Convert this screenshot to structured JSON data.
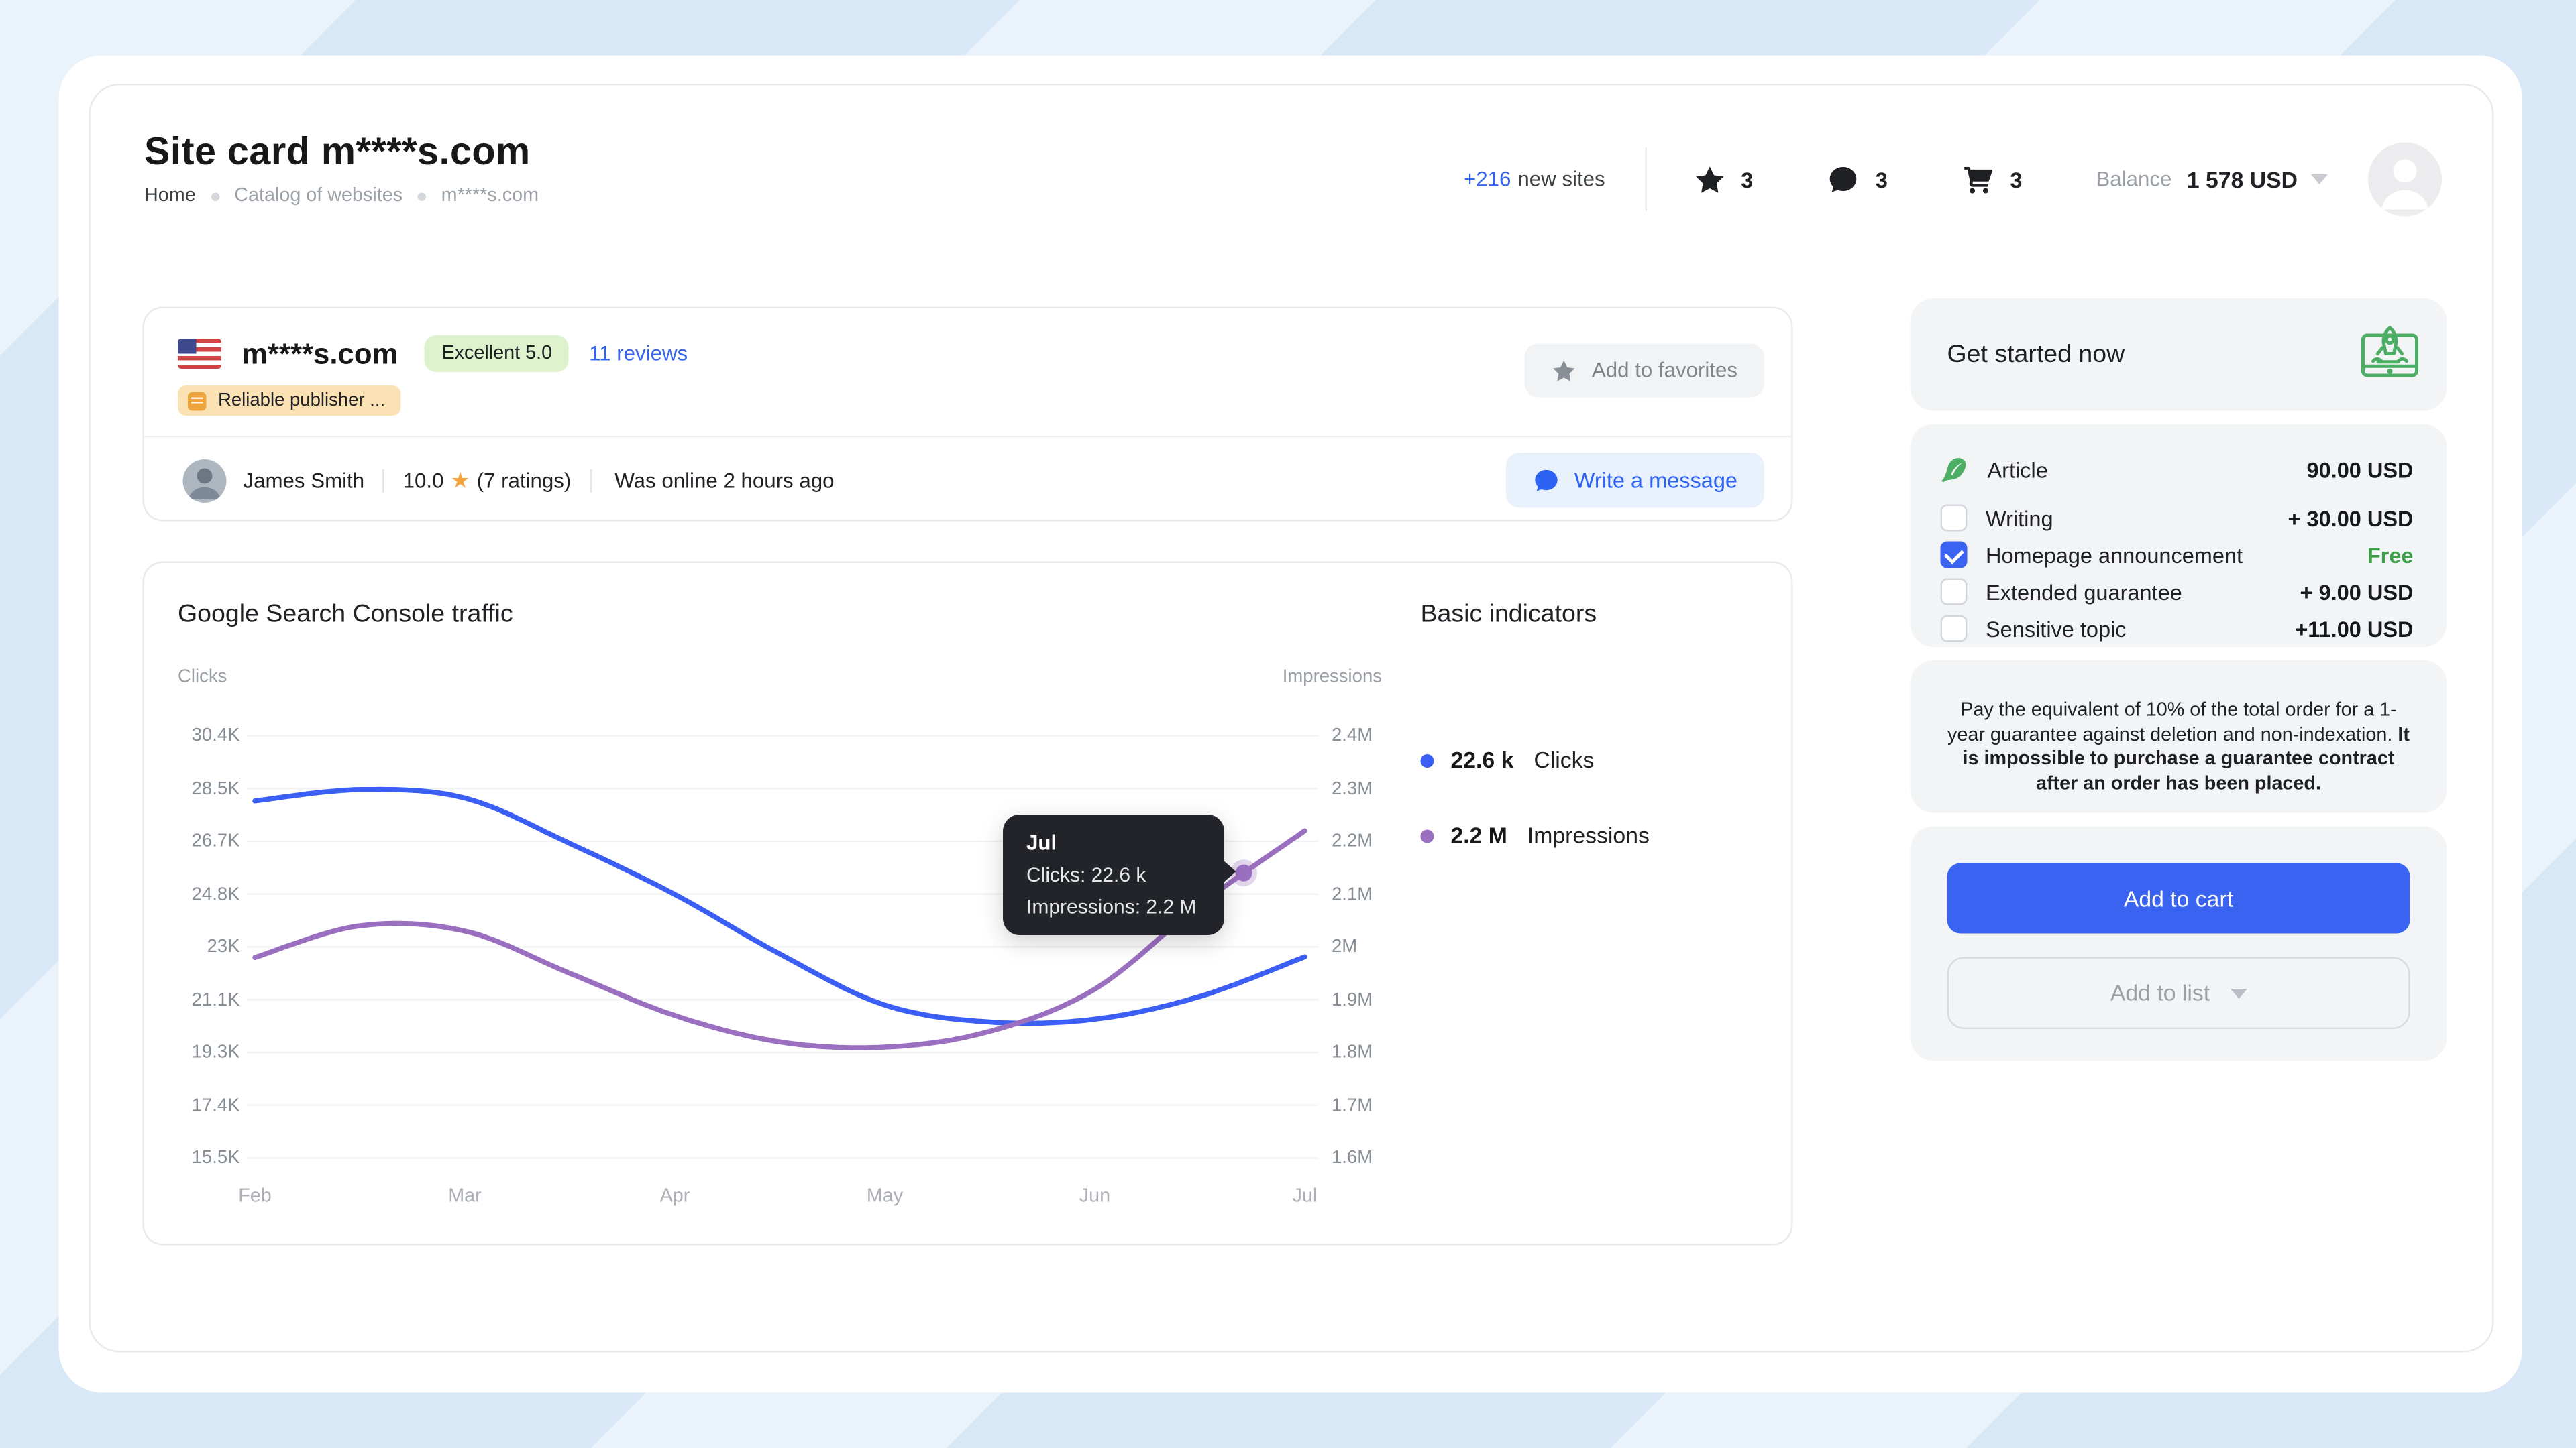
{
  "page": {
    "title": "Site card m****s.com"
  },
  "breadcrumb": {
    "items": [
      "Home",
      "Catalog of websites",
      "m****s.com"
    ]
  },
  "header": {
    "new_sites_count": "+216",
    "new_sites_label": "new sites",
    "favorites_count": "3",
    "messages_count": "3",
    "cart_count": "3",
    "balance_label": "Balance",
    "balance_value": "1 578 USD"
  },
  "site": {
    "domain": "m****s.com",
    "rating_badge": "Excellent 5.0",
    "reviews_link": "11 reviews",
    "publisher_badge": "Reliable publisher ...",
    "add_to_favorites_label": "Add to favorites",
    "owner": {
      "name": "James Smith",
      "rating": "10.0",
      "ratings_count": "(7 ratings)",
      "last_online": "Was online 2 hours ago"
    },
    "write_message_label": "Write a message"
  },
  "chart_data": {
    "type": "line",
    "title": "Google Search Console traffic",
    "x_categories": [
      "Feb",
      "Mar",
      "Apr",
      "May",
      "Jun",
      "Jul"
    ],
    "grid": "horizontal",
    "legend_position": "right",
    "left_axis": {
      "label": "Clicks",
      "ticks": [
        "30.4K",
        "28.5K",
        "26.7K",
        "24.8K",
        "23K",
        "21.1K",
        "19.3K",
        "17.4K",
        "15.5K"
      ],
      "min": 15.5,
      "max": 30.4,
      "unit": "K"
    },
    "right_axis": {
      "label": "Impressions",
      "ticks": [
        "2.4M",
        "2.3M",
        "2.2M",
        "2.1M",
        "2M",
        "1.9M",
        "1.8M",
        "1.7M",
        "1.6M"
      ],
      "min": 1.6,
      "max": 2.4,
      "unit": "M"
    },
    "series": [
      {
        "name": "Clicks",
        "axis": "left",
        "color": "#3b5ef5",
        "x_months": [
          0,
          0.5,
          1,
          1.5,
          2,
          2.5,
          3,
          3.5,
          4,
          4.5,
          5
        ],
        "values": [
          28.1,
          28.5,
          28.2,
          26.6,
          24.8,
          22.7,
          20.9,
          20.3,
          20.4,
          21.2,
          22.6
        ]
      },
      {
        "name": "Impressions",
        "axis": "right",
        "color": "#9b6fc0",
        "x_months": [
          0,
          0.5,
          1,
          1.5,
          2,
          2.5,
          3,
          3.5,
          4,
          4.5,
          5
        ],
        "values": [
          1.98,
          2.04,
          2.03,
          1.95,
          1.87,
          1.82,
          1.81,
          1.84,
          1.92,
          2.08,
          2.22
        ]
      }
    ],
    "tooltip": {
      "title": "Jul",
      "lines": [
        "Clicks: 22.6 k",
        "Impressions: 2.2 M"
      ],
      "point_month": 4.72,
      "point_series": "Impressions"
    }
  },
  "indicators": {
    "title": "Basic indicators",
    "items": [
      {
        "value": "22.6 k",
        "label": "Clicks",
        "color": "#3b5ef5"
      },
      {
        "value": "2.2 M",
        "label": "Impressions",
        "color": "#9b6fc0"
      }
    ]
  },
  "sidebar": {
    "get_started": "Get started now",
    "pricing": [
      {
        "label": "Article",
        "value": "90.00 USD"
      },
      {
        "label": "Writing",
        "value": "+ 30.00 USD"
      },
      {
        "label": "Homepage announcement",
        "value": "Free"
      },
      {
        "label": "Extended guarantee",
        "value": "+ 9.00 USD"
      },
      {
        "label": "Sensitive topic",
        "value": "+11.00 USD"
      }
    ],
    "guarantee_text_normal": "Pay the equivalent of 10% of the total order for a 1-year guarantee against deletion and non-indexation. ",
    "guarantee_text_bold": "It is impossible to purchase a guarantee contract after an order has been placed.",
    "add_to_cart_label": "Add to cart",
    "add_to_list_label": "Add to list"
  }
}
